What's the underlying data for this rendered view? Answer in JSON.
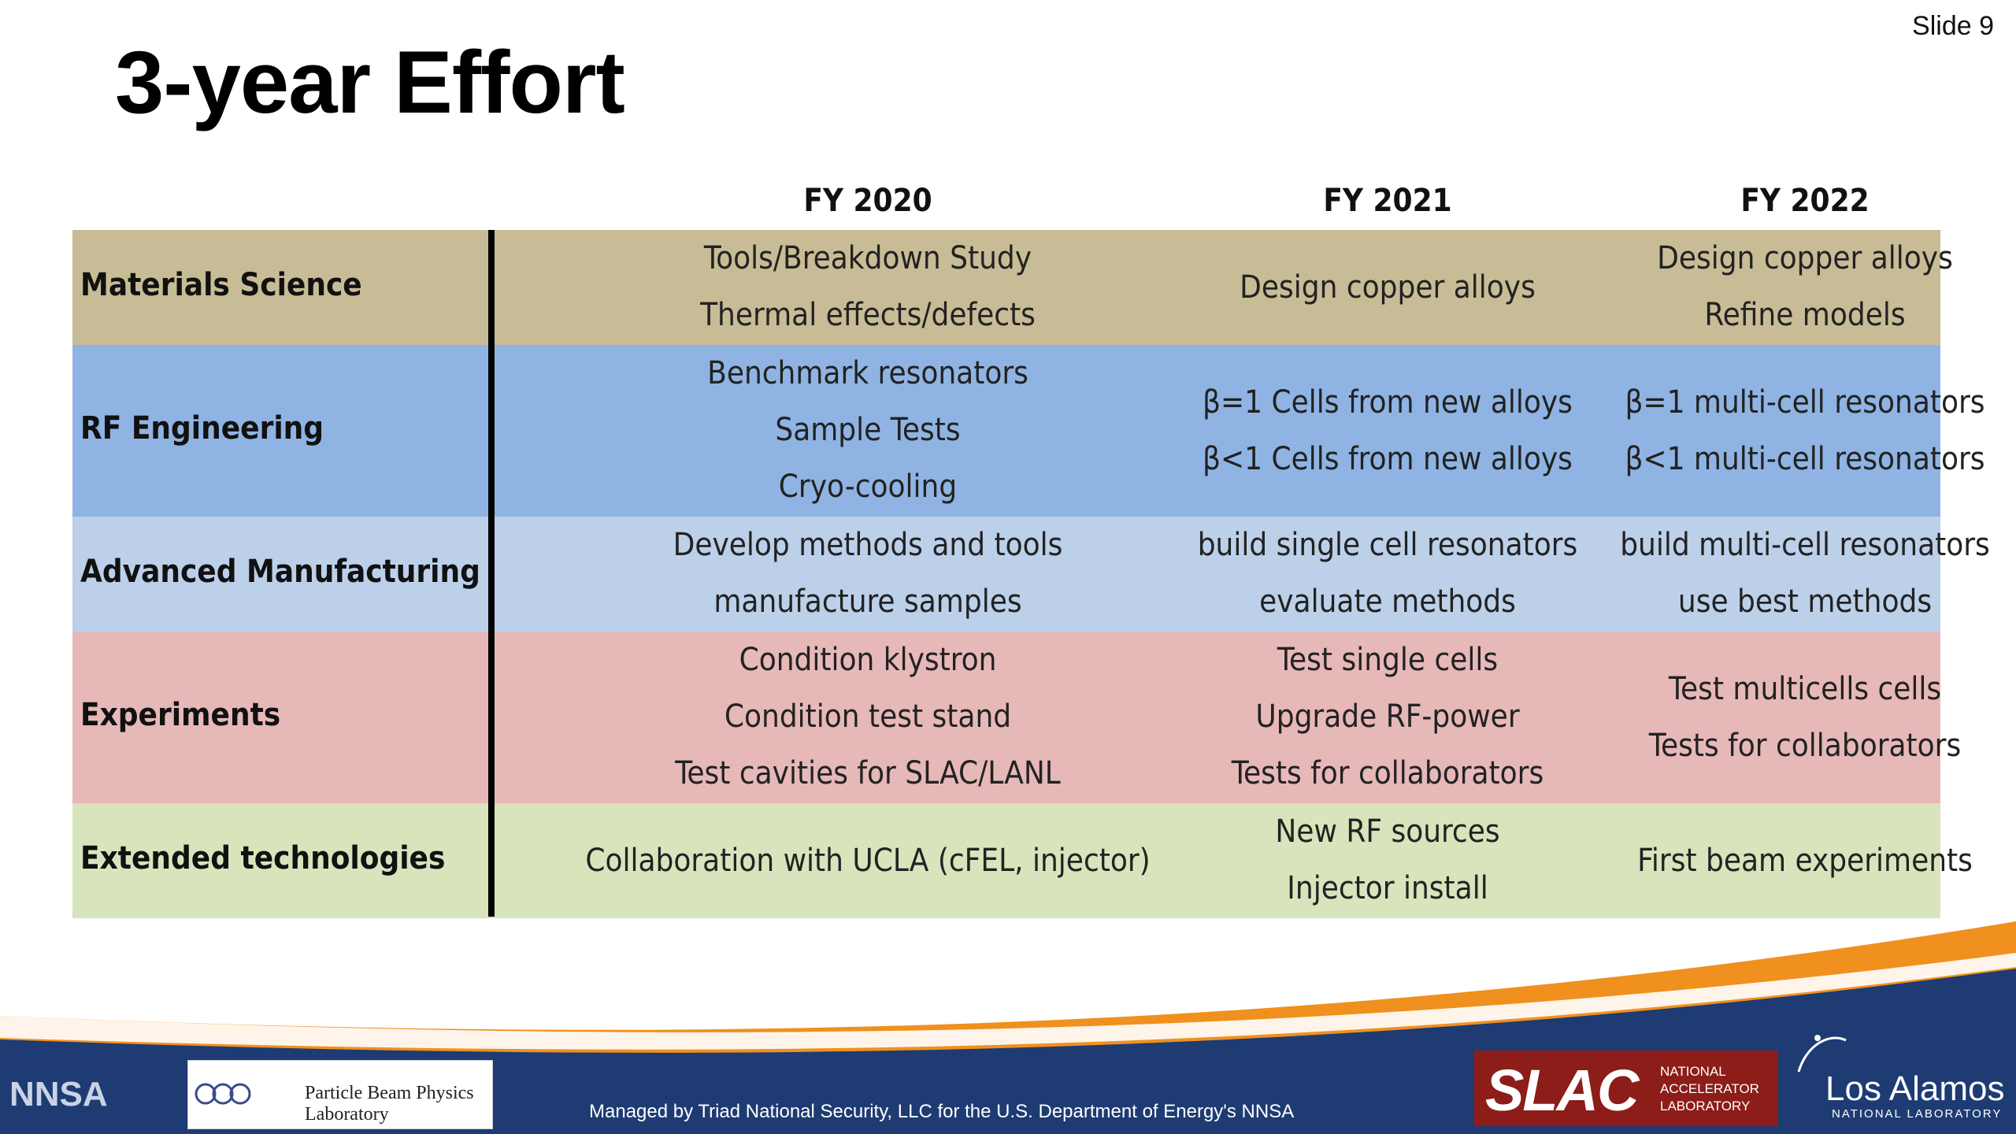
{
  "slide_number": "Slide 9",
  "title": "3-year Effort",
  "columns": [
    "FY 2020",
    "FY 2021",
    "FY 2022"
  ],
  "rows": [
    {
      "label": "Materials Science",
      "color": "#c8bc96",
      "fy2020": [
        "Tools/Breakdown Study",
        "Thermal effects/defects"
      ],
      "fy2021": [
        "Design copper alloys"
      ],
      "fy2022": [
        "Design copper alloys",
        "Refine models"
      ]
    },
    {
      "label": "RF Engineering",
      "color": "#8fb4e3",
      "fy2020": [
        "Benchmark resonators",
        "Sample Tests",
        "Cryo-cooling"
      ],
      "fy2021": [
        "β=1 Cells from new alloys",
        "β<1 Cells from new alloys"
      ],
      "fy2022": [
        "β=1  multi-cell resonators",
        "β<1  multi-cell resonators"
      ]
    },
    {
      "label": "Advanced Manufacturing",
      "color": "#bcd0ea",
      "fy2020": [
        "Develop methods and tools",
        "manufacture samples"
      ],
      "fy2021": [
        "build single cell resonators",
        "evaluate methods"
      ],
      "fy2022": [
        "build multi-cell resonators",
        "use best methods"
      ]
    },
    {
      "label": "Experiments",
      "color": "#e7b8b8",
      "fy2020": [
        "Condition klystron",
        "Condition test stand",
        "Test cavities for SLAC/LANL"
      ],
      "fy2021": [
        "Test single cells",
        "Upgrade RF-power",
        "Tests for collaborators"
      ],
      "fy2022": [
        "Test multicells cells",
        "Tests for collaborators"
      ]
    },
    {
      "label": "Extended technologies",
      "color": "#d8e4bc",
      "fy2020": [
        "Collaboration with UCLA (cFEL, injector)"
      ],
      "fy2021": [
        "New RF sources",
        "Injector install"
      ],
      "fy2022": [
        "First beam experiments"
      ]
    }
  ],
  "footer": {
    "managed_by": "Managed by Triad National Security, LLC for the U.S. Department of Energy's NNSA",
    "logos": {
      "nnsa": "NNSA",
      "pbpl": "Particle Beam Physics Laboratory",
      "slac": "SLAC",
      "slac_sub": [
        "NATIONAL",
        "ACCELERATOR",
        "LABORATORY"
      ],
      "lanl": "Los Alamos",
      "lanl_sub": "NATIONAL LABORATORY"
    },
    "colors": {
      "navy": "#1e3b73",
      "orange": "#f0901e"
    }
  }
}
